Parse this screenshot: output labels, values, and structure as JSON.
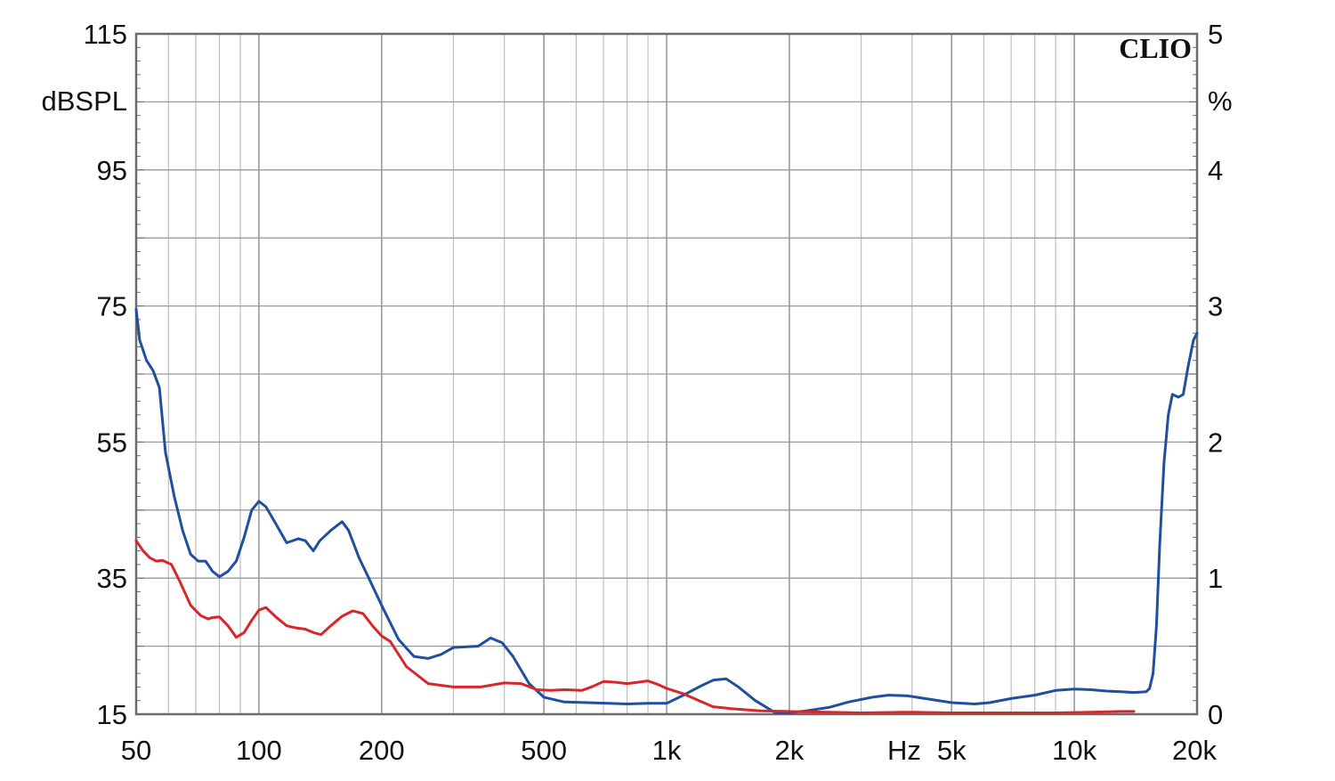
{
  "chart_data": {
    "type": "line",
    "brand": "CLIO",
    "x_scale": "log",
    "xlim": [
      50,
      20000
    ],
    "ylim_left": [
      15,
      115
    ],
    "ylim_right": [
      0,
      5
    ],
    "grid": true,
    "y_unit_left": "dBSPL",
    "y_unit_right": "%",
    "x_unit": "Hz",
    "x_ticks": [
      {
        "v": 50,
        "label": "50"
      },
      {
        "v": 100,
        "label": "100"
      },
      {
        "v": 200,
        "label": "200"
      },
      {
        "v": 500,
        "label": "500"
      },
      {
        "v": 1000,
        "label": "1k"
      },
      {
        "v": 2000,
        "label": "2k"
      },
      {
        "v": 5000,
        "label": "5k"
      },
      {
        "v": 10000,
        "label": "10k"
      },
      {
        "v": 20000,
        "label": "20k"
      }
    ],
    "y_ticks_left": [
      {
        "v": 115,
        "label": "115"
      },
      {
        "v": 95,
        "label": "95"
      },
      {
        "v": 75,
        "label": "75"
      },
      {
        "v": 55,
        "label": "55"
      },
      {
        "v": 35,
        "label": "35"
      },
      {
        "v": 15,
        "label": "15"
      }
    ],
    "y_ticks_right": [
      {
        "v": 5,
        "label": "5"
      },
      {
        "v": 4,
        "label": "4"
      },
      {
        "v": 3,
        "label": "3"
      },
      {
        "v": 2,
        "label": "2"
      },
      {
        "v": 1,
        "label": "1"
      },
      {
        "v": 0,
        "label": "0"
      }
    ],
    "series": [
      {
        "color": "#1f4f9e",
        "points": [
          [
            50,
            74.5
          ],
          [
            51,
            70
          ],
          [
            53,
            67
          ],
          [
            55,
            65.5
          ],
          [
            57,
            63
          ],
          [
            59,
            53.5
          ],
          [
            62,
            47
          ],
          [
            65,
            42
          ],
          [
            68,
            38.5
          ],
          [
            71,
            37.5
          ],
          [
            74,
            37.5
          ],
          [
            77,
            36
          ],
          [
            80,
            35.2
          ],
          [
            84,
            36
          ],
          [
            88,
            37.5
          ],
          [
            92,
            41
          ],
          [
            96,
            45
          ],
          [
            100,
            46.3
          ],
          [
            104,
            45.5
          ],
          [
            110,
            43
          ],
          [
            117,
            40.2
          ],
          [
            125,
            40.8
          ],
          [
            130,
            40.5
          ],
          [
            136,
            39
          ],
          [
            141,
            40.5
          ],
          [
            150,
            42
          ],
          [
            160,
            43.3
          ],
          [
            166,
            42
          ],
          [
            176,
            38
          ],
          [
            186,
            35
          ],
          [
            200,
            31
          ],
          [
            220,
            26
          ],
          [
            240,
            23.5
          ],
          [
            260,
            23.2
          ],
          [
            280,
            23.8
          ],
          [
            300,
            24.8
          ],
          [
            320,
            24.9
          ],
          [
            345,
            25
          ],
          [
            370,
            26.2
          ],
          [
            395,
            25.5
          ],
          [
            420,
            23.5
          ],
          [
            460,
            19.5
          ],
          [
            500,
            17.5
          ],
          [
            560,
            16.8
          ],
          [
            640,
            16.7
          ],
          [
            720,
            16.6
          ],
          [
            800,
            16.5
          ],
          [
            900,
            16.6
          ],
          [
            1000,
            16.6
          ],
          [
            1100,
            17.8
          ],
          [
            1200,
            19
          ],
          [
            1300,
            20
          ],
          [
            1400,
            20.2
          ],
          [
            1500,
            19
          ],
          [
            1650,
            17
          ],
          [
            1850,
            15.2
          ],
          [
            2000,
            15.2
          ],
          [
            2200,
            15.5
          ],
          [
            2500,
            16
          ],
          [
            2800,
            16.8
          ],
          [
            3200,
            17.5
          ],
          [
            3500,
            17.8
          ],
          [
            3900,
            17.7
          ],
          [
            4300,
            17.3
          ],
          [
            5000,
            16.7
          ],
          [
            5700,
            16.5
          ],
          [
            6200,
            16.7
          ],
          [
            7000,
            17.3
          ],
          [
            8000,
            17.8
          ],
          [
            9000,
            18.5
          ],
          [
            10000,
            18.7
          ],
          [
            11000,
            18.6
          ],
          [
            12000,
            18.4
          ],
          [
            13000,
            18.3
          ],
          [
            14000,
            18.2
          ],
          [
            15000,
            18.3
          ],
          [
            15300,
            18.8
          ],
          [
            15600,
            21
          ],
          [
            15900,
            28
          ],
          [
            16200,
            40
          ],
          [
            16600,
            52
          ],
          [
            17000,
            59
          ],
          [
            17400,
            62
          ],
          [
            18000,
            61.6
          ],
          [
            18500,
            62
          ],
          [
            19000,
            66
          ],
          [
            19600,
            70
          ],
          [
            20000,
            71
          ]
        ]
      },
      {
        "color": "#d8262b",
        "points": [
          [
            50,
            40.5
          ],
          [
            52,
            39
          ],
          [
            54,
            38
          ],
          [
            56,
            37.5
          ],
          [
            58,
            37.6
          ],
          [
            61,
            37
          ],
          [
            64,
            34.5
          ],
          [
            68,
            31
          ],
          [
            72,
            29.5
          ],
          [
            75,
            29
          ],
          [
            77,
            29.2
          ],
          [
            80,
            29.3
          ],
          [
            84,
            28
          ],
          [
            88,
            26.3
          ],
          [
            92,
            27
          ],
          [
            96,
            28.8
          ],
          [
            100,
            30.3
          ],
          [
            104,
            30.7
          ],
          [
            110,
            29.3
          ],
          [
            117,
            28
          ],
          [
            123,
            27.7
          ],
          [
            130,
            27.5
          ],
          [
            136,
            27
          ],
          [
            142,
            26.7
          ],
          [
            150,
            28
          ],
          [
            160,
            29.4
          ],
          [
            170,
            30.2
          ],
          [
            180,
            29.8
          ],
          [
            190,
            28
          ],
          [
            200,
            26.5
          ],
          [
            210,
            25.7
          ],
          [
            230,
            22
          ],
          [
            260,
            19.5
          ],
          [
            300,
            19
          ],
          [
            350,
            19
          ],
          [
            400,
            19.6
          ],
          [
            440,
            19.5
          ],
          [
            480,
            18.6
          ],
          [
            520,
            18.5
          ],
          [
            560,
            18.6
          ],
          [
            620,
            18.5
          ],
          [
            660,
            19.1
          ],
          [
            700,
            19.8
          ],
          [
            750,
            19.7
          ],
          [
            800,
            19.5
          ],
          [
            850,
            19.7
          ],
          [
            900,
            19.9
          ],
          [
            950,
            19.4
          ],
          [
            1000,
            18.8
          ],
          [
            1100,
            18
          ],
          [
            1200,
            17
          ],
          [
            1300,
            16.1
          ],
          [
            1450,
            15.8
          ],
          [
            1700,
            15.5
          ],
          [
            2000,
            15.4
          ],
          [
            2500,
            15.3
          ],
          [
            3000,
            15.2
          ],
          [
            4000,
            15.3
          ],
          [
            5000,
            15.2
          ],
          [
            7000,
            15.2
          ],
          [
            9000,
            15.2
          ],
          [
            11000,
            15.3
          ],
          [
            13000,
            15.4
          ],
          [
            14000,
            15.4
          ]
        ]
      }
    ]
  }
}
